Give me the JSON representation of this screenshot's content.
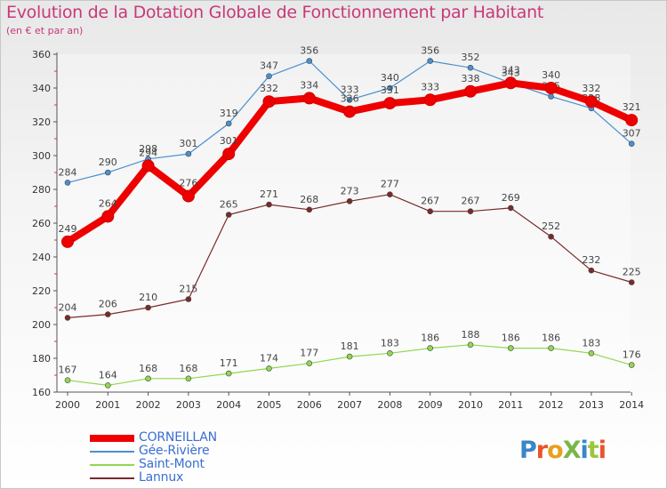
{
  "header": {
    "title": "Evolution de la Dotation Globale de Fonctionnement par Habitant",
    "subtitle": "(en € et par an)"
  },
  "brand": {
    "name": "ProXiti",
    "letter_colors": [
      "#3a86c8",
      "#e8542a",
      "#e8a020",
      "#7ab648",
      "#3a86c8",
      "#9bc63c",
      "#e8542a"
    ]
  },
  "chart_data": {
    "type": "line",
    "title": "Evolution de la Dotation Globale de Fonctionnement par Habitant",
    "subtitle": "(en € et par an)",
    "xlabel": "",
    "ylabel": "",
    "x": [
      "2000",
      "2001",
      "2002",
      "2003",
      "2004",
      "2005",
      "2006",
      "2007",
      "2008",
      "2009",
      "2010",
      "2011",
      "2012",
      "2013",
      "2014"
    ],
    "ylim": [
      160,
      360
    ],
    "yticks": [
      160,
      180,
      200,
      220,
      240,
      260,
      280,
      300,
      320,
      340,
      360
    ],
    "grid": false,
    "legend_position": "bottom-left",
    "series": [
      {
        "name": "Gée-Rivière",
        "color": "#4a90d0",
        "values": [
          284,
          290,
          298,
          301,
          319,
          347,
          356,
          333,
          340,
          356,
          352,
          343,
          335,
          328,
          307
        ]
      },
      {
        "name": "Saint-Mont",
        "color": "#90d850",
        "values": [
          167,
          164,
          168,
          168,
          171,
          174,
          177,
          181,
          183,
          186,
          188,
          186,
          186,
          183,
          176
        ]
      },
      {
        "name": "Lannux",
        "color": "#7a2a2a",
        "values": [
          204,
          206,
          210,
          215,
          265,
          271,
          268,
          273,
          277,
          267,
          267,
          269,
          252,
          232,
          225
        ]
      },
      {
        "name": "CORNEILLAN",
        "color": "#ee0000",
        "values": [
          249,
          264,
          294,
          276,
          301,
          332,
          334,
          326,
          331,
          333,
          338,
          343,
          340,
          332,
          321
        ]
      }
    ]
  },
  "legend": [
    {
      "name": "CORNEILLAN",
      "color": "#ee0000"
    },
    {
      "name": "Gée-Rivière",
      "color": "#4a90d0"
    },
    {
      "name": "Saint-Mont",
      "color": "#90d850"
    },
    {
      "name": "Lannux",
      "color": "#7a2a2a"
    }
  ]
}
